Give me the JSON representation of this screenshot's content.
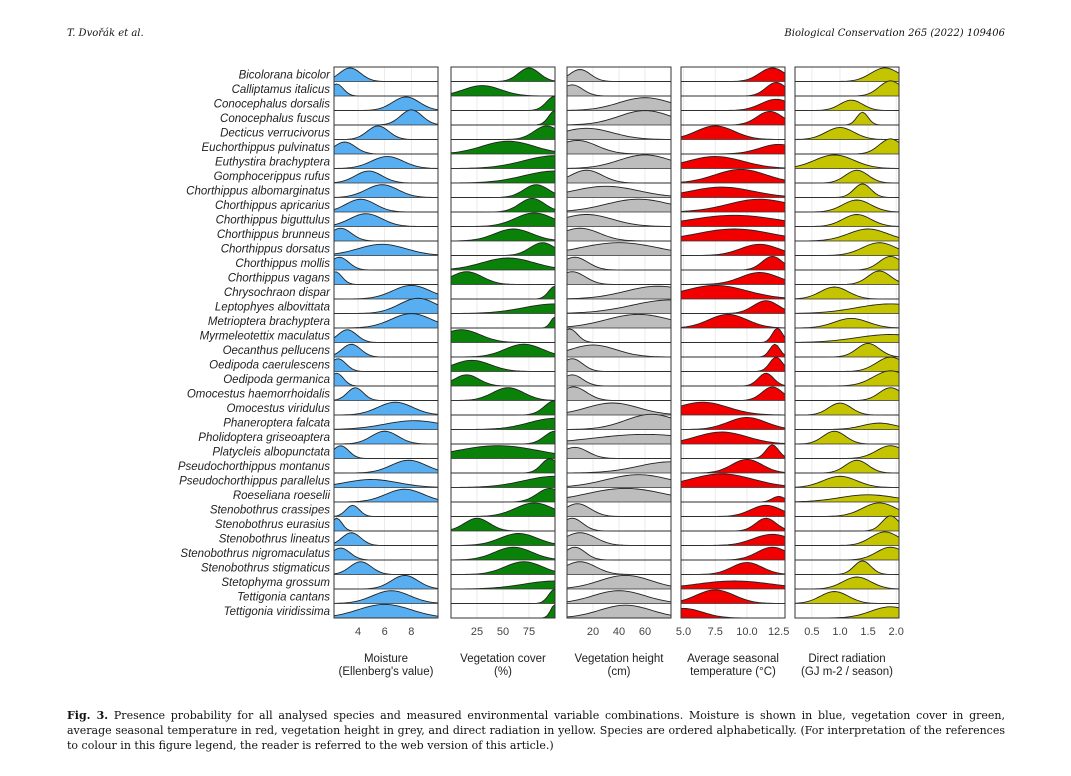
{
  "header": {
    "left": "T. Dvořák et al.",
    "right": "Biological Conservation 265 (2022) 109406"
  },
  "caption": {
    "label": "Fig. 3.",
    "text": "Presence probability for all analysed species and measured environmental variable combinations. Moisture is shown in blue, vegetation cover in green, average seasonal temperature in red, vegetation height in grey, and direct radiation in yellow. Species are ordered alphabetically. (For interpretation of the references to colour in this figure legend, the reader is referred to the web version of this article.)"
  },
  "chart_data": {
    "type": "area",
    "species": [
      "Bicolorana bicolor",
      "Calliptamus italicus",
      "Conocephalus dorsalis",
      "Conocephalus fuscus",
      "Decticus verrucivorus",
      "Euchorthippus pulvinatus",
      "Euthystira brachyptera",
      "Gomphocerippus rufus",
      "Chorthippus albomarginatus",
      "Chorthippus apricarius",
      "Chorthippus biguttulus",
      "Chorthippus brunneus",
      "Chorthippus dorsatus",
      "Chorthippus mollis",
      "Chorthippus vagans",
      "Chrysochraon dispar",
      "Leptophyes albovittata",
      "Metrioptera brachyptera",
      "Myrmeleotettix maculatus",
      "Oecanthus pellucens",
      "Oedipoda caerulescens",
      "Oedipoda germanica",
      "Omocestus haemorrhoidalis",
      "Omocestus viridulus",
      "Phaneroptera falcata",
      "Pholidoptera griseoaptera",
      "Platycleis albopunctata",
      "Pseudochorthippus montanus",
      "Pseudochorthippus parallelus",
      "Roeseliana roeselii",
      "Stenobothrus crassipes",
      "Stenobothrus eurasius",
      "Stenobothrus lineatus",
      "Stenobothrus nigromaculatus",
      "Stenobothrus stigmaticus",
      "Stetophyma grossum",
      "Tettigonia cantans",
      "Tettigonia viridissima"
    ],
    "panels": [
      {
        "name": "moisture",
        "color": "#57aef0",
        "xlabel": "Moisture",
        "xunit": "(Ellenberg's value)",
        "xlim": [
          2.2,
          10
        ],
        "ticks": [
          4,
          6,
          8
        ],
        "curves": [
          [
            3.4,
            0.8,
            0.85
          ],
          [
            2.4,
            0.5,
            0.75
          ],
          [
            7.6,
            1.0,
            0.85
          ],
          [
            8,
            0.8,
            0.95
          ],
          [
            5.5,
            0.8,
            0.85
          ],
          [
            3,
            0.8,
            0.75
          ],
          [
            6.2,
            1.2,
            0.75
          ],
          [
            4.8,
            1.0,
            0.75
          ],
          [
            5.8,
            1.2,
            0.8
          ],
          [
            4.2,
            1.1,
            0.8
          ],
          [
            4.6,
            1.2,
            0.8
          ],
          [
            2.7,
            0.8,
            0.8
          ],
          [
            5.8,
            1.8,
            0.7
          ],
          [
            2.6,
            0.7,
            0.8
          ],
          [
            2.3,
            0.5,
            0.8
          ],
          [
            8,
            1.4,
            0.85
          ],
          [
            8.5,
            1.4,
            0.95
          ],
          [
            8,
            1.5,
            0.9
          ],
          [
            3.2,
            0.7,
            0.8
          ],
          [
            3.5,
            0.7,
            0.8
          ],
          [
            2.5,
            0.6,
            0.8
          ],
          [
            2.4,
            0.5,
            0.8
          ],
          [
            3.8,
            0.6,
            0.8
          ],
          [
            6.8,
            1.3,
            0.8
          ],
          [
            8.2,
            2.2,
            0.55
          ],
          [
            6,
            1.0,
            0.8
          ],
          [
            2.7,
            0.6,
            0.8
          ],
          [
            7.8,
            1.3,
            0.8
          ],
          [
            5,
            2.0,
            0.5
          ],
          [
            7.5,
            1.4,
            0.8
          ],
          [
            3.6,
            0.5,
            0.7
          ],
          [
            2.4,
            0.4,
            0.8
          ],
          [
            3.5,
            0.7,
            0.8
          ],
          [
            2.7,
            0.7,
            0.75
          ],
          [
            4.2,
            0.8,
            0.8
          ],
          [
            7.5,
            1.0,
            0.85
          ],
          [
            6.5,
            1.4,
            0.8
          ],
          [
            6,
            2.0,
            0.85
          ]
        ]
      },
      {
        "name": "vegetation-cover",
        "color": "#0a820a",
        "xlabel": "Vegetation cover",
        "xunit": "(%)",
        "xlim": [
          0,
          100
        ],
        "ticks": [
          25,
          50,
          75
        ],
        "curves": [
          [
            75,
            10,
            0.85
          ],
          [
            30,
            18,
            0.65
          ],
          [
            100,
            8,
            0.9
          ],
          [
            100,
            6,
            0.9
          ],
          [
            92,
            12,
            0.85
          ],
          [
            55,
            25,
            0.8
          ],
          [
            100,
            30,
            0.8
          ],
          [
            100,
            30,
            0.75
          ],
          [
            82,
            12,
            0.8
          ],
          [
            78,
            12,
            0.85
          ],
          [
            80,
            18,
            0.85
          ],
          [
            60,
            18,
            0.75
          ],
          [
            88,
            12,
            0.8
          ],
          [
            55,
            25,
            0.75
          ],
          [
            15,
            15,
            0.8
          ],
          [
            100,
            6,
            0.8
          ],
          [
            100,
            30,
            0.6
          ],
          [
            100,
            4,
            0.7
          ],
          [
            10,
            18,
            0.8
          ],
          [
            70,
            18,
            0.8
          ],
          [
            20,
            18,
            0.7
          ],
          [
            15,
            12,
            0.7
          ],
          [
            55,
            15,
            0.8
          ],
          [
            100,
            10,
            0.9
          ],
          [
            100,
            25,
            0.7
          ],
          [
            100,
            10,
            0.8
          ],
          [
            45,
            40,
            0.8
          ],
          [
            95,
            8,
            0.9
          ],
          [
            100,
            30,
            0.7
          ],
          [
            95,
            12,
            0.85
          ],
          [
            80,
            18,
            0.85
          ],
          [
            25,
            12,
            0.8
          ],
          [
            65,
            18,
            0.75
          ],
          [
            60,
            18,
            0.8
          ],
          [
            70,
            18,
            0.8
          ],
          [
            100,
            30,
            0.5
          ],
          [
            100,
            6,
            0.9
          ],
          [
            100,
            4,
            0.85
          ]
        ]
      },
      {
        "name": "vegetation-height",
        "color": "#bdbdbd",
        "xlabel": "Vegetation height",
        "xunit": "(cm)",
        "xlim": [
          0,
          80
        ],
        "ticks": [
          20,
          40,
          60
        ],
        "curves": [
          [
            10,
            8,
            0.75
          ],
          [
            4,
            8,
            0.7
          ],
          [
            60,
            20,
            0.8
          ],
          [
            60,
            20,
            0.9
          ],
          [
            15,
            20,
            0.7
          ],
          [
            8,
            15,
            0.85
          ],
          [
            60,
            20,
            0.85
          ],
          [
            15,
            12,
            0.8
          ],
          [
            30,
            25,
            0.7
          ],
          [
            55,
            25,
            0.8
          ],
          [
            15,
            20,
            0.75
          ],
          [
            10,
            15,
            0.8
          ],
          [
            40,
            30,
            0.8
          ],
          [
            6,
            10,
            0.8
          ],
          [
            4,
            10,
            0.8
          ],
          [
            70,
            25,
            0.8
          ],
          [
            80,
            30,
            0.85
          ],
          [
            55,
            25,
            0.85
          ],
          [
            2,
            6,
            0.85
          ],
          [
            20,
            18,
            0.75
          ],
          [
            4,
            8,
            0.8
          ],
          [
            4,
            8,
            0.7
          ],
          [
            5,
            10,
            0.85
          ],
          [
            35,
            20,
            0.75
          ],
          [
            65,
            20,
            0.95
          ],
          [
            60,
            40,
            0.6
          ],
          [
            6,
            10,
            0.7
          ],
          [
            80,
            25,
            0.7
          ],
          [
            55,
            25,
            0.8
          ],
          [
            45,
            30,
            0.85
          ],
          [
            8,
            10,
            0.8
          ],
          [
            4,
            8,
            0.8
          ],
          [
            10,
            12,
            0.8
          ],
          [
            6,
            8,
            0.8
          ],
          [
            10,
            12,
            0.8
          ],
          [
            45,
            20,
            0.85
          ],
          [
            40,
            20,
            0.8
          ],
          [
            45,
            20,
            0.8
          ]
        ]
      },
      {
        "name": "temperature",
        "color": "#f20000",
        "xlabel": "Average seasonal",
        "xunit": "temperature (°C)",
        "xlim": [
          4.8,
          13
        ],
        "ticks": [
          5.0,
          7.5,
          10.0,
          12.5
        ],
        "curves": [
          [
            12,
            1.0,
            0.85
          ],
          [
            12.3,
            0.8,
            0.85
          ],
          [
            12.3,
            1.2,
            0.7
          ],
          [
            11.8,
            1.0,
            0.85
          ],
          [
            7.5,
            1.5,
            0.85
          ],
          [
            12.5,
            1.5,
            0.6
          ],
          [
            7.5,
            2.2,
            0.75
          ],
          [
            9.5,
            2.0,
            0.85
          ],
          [
            8,
            2.5,
            0.65
          ],
          [
            11,
            2.5,
            0.8
          ],
          [
            9,
            3.5,
            0.7
          ],
          [
            9,
            3.0,
            0.75
          ],
          [
            11,
            1.5,
            0.7
          ],
          [
            12,
            0.8,
            0.85
          ],
          [
            11,
            1.5,
            0.75
          ],
          [
            7.5,
            2.5,
            0.85
          ],
          [
            11.5,
            1.0,
            0.8
          ],
          [
            8.5,
            1.5,
            0.85
          ],
          [
            12.4,
            0.4,
            0.9
          ],
          [
            12.2,
            0.4,
            0.8
          ],
          [
            12.3,
            0.5,
            0.9
          ],
          [
            11.5,
            0.6,
            0.8
          ],
          [
            12,
            0.8,
            0.85
          ],
          [
            6.5,
            2.0,
            0.8
          ],
          [
            10,
            1.5,
            0.75
          ],
          [
            8,
            2.0,
            0.75
          ],
          [
            12,
            0.5,
            0.85
          ],
          [
            10,
            1.2,
            0.85
          ],
          [
            8,
            2.5,
            0.85
          ],
          [
            12.5,
            0.5,
            0.35
          ],
          [
            11.5,
            1.2,
            0.7
          ],
          [
            11.5,
            0.8,
            0.8
          ],
          [
            12,
            1.5,
            0.7
          ],
          [
            12,
            1.2,
            0.8
          ],
          [
            10,
            1.2,
            0.75
          ],
          [
            9,
            3.0,
            0.5
          ],
          [
            7.5,
            1.5,
            0.85
          ],
          [
            5,
            1.5,
            0.6
          ]
        ]
      },
      {
        "name": "direct-radiation",
        "color": "#c4c400",
        "xlabel": "Direct radiation",
        "xunit": "(GJ m-2 / season)",
        "xlim": [
          0.2,
          2.05
        ],
        "ticks": [
          0.5,
          1.0,
          1.5,
          2.0
        ],
        "curves": [
          [
            1.8,
            0.25,
            0.85
          ],
          [
            1.9,
            0.2,
            0.95
          ],
          [
            1.2,
            0.2,
            0.65
          ],
          [
            1.4,
            0.1,
            0.8
          ],
          [
            1.0,
            0.25,
            0.75
          ],
          [
            1.9,
            0.2,
            0.95
          ],
          [
            0.9,
            0.35,
            0.85
          ],
          [
            1.3,
            0.2,
            0.8
          ],
          [
            1.4,
            0.15,
            0.85
          ],
          [
            1.3,
            0.25,
            0.75
          ],
          [
            1.3,
            0.25,
            0.75
          ],
          [
            1.5,
            0.35,
            0.75
          ],
          [
            1.7,
            0.3,
            0.8
          ],
          [
            1.9,
            0.2,
            0.85
          ],
          [
            1.7,
            0.2,
            0.85
          ],
          [
            0.9,
            0.25,
            0.75
          ],
          [
            1.9,
            0.6,
            0.6
          ],
          [
            1.2,
            0.3,
            0.6
          ],
          [
            1.9,
            0.6,
            0.5
          ],
          [
            1.5,
            0.2,
            0.85
          ],
          [
            1.9,
            0.25,
            0.9
          ],
          [
            1.9,
            0.3,
            0.95
          ],
          [
            1.9,
            0.2,
            0.8
          ],
          [
            1.0,
            0.2,
            0.75
          ],
          [
            1.7,
            0.3,
            0.4
          ],
          [
            0.9,
            0.2,
            0.8
          ],
          [
            1.9,
            0.25,
            0.8
          ],
          [
            1.3,
            0.2,
            0.8
          ],
          [
            1.0,
            0.3,
            0.7
          ],
          [
            1.5,
            0.5,
            0.45
          ],
          [
            1.7,
            0.3,
            0.85
          ],
          [
            1.9,
            0.15,
            0.95
          ],
          [
            1.8,
            0.25,
            0.85
          ],
          [
            1.9,
            0.25,
            0.8
          ],
          [
            1.4,
            0.15,
            0.85
          ],
          [
            1.3,
            0.25,
            0.75
          ],
          [
            0.9,
            0.25,
            0.75
          ],
          [
            1.9,
            0.35,
            0.7
          ]
        ]
      }
    ]
  }
}
